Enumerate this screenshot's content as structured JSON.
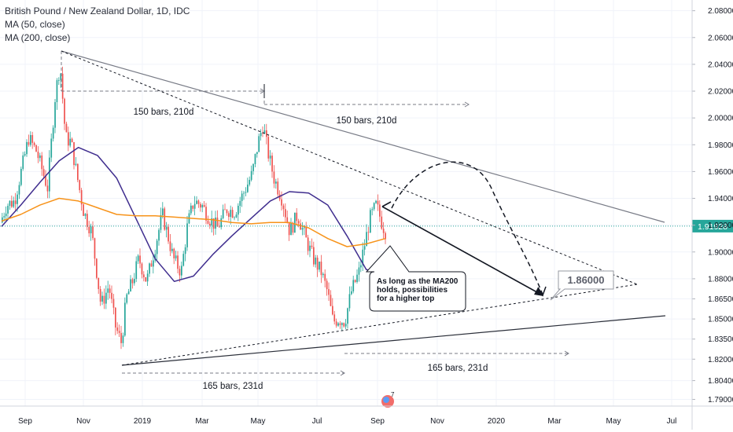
{
  "header": {
    "symbol_title": "British Pound / New Zealand Dollar, 1D, IDC",
    "ma50_label": "MA (50, close)",
    "ma200_label": "MA (200, close)"
  },
  "colors": {
    "up": "#26a69a",
    "down": "#ef5350",
    "ma50": "#3f2d8e",
    "ma200": "#f7931a",
    "price_line": "#26a69a",
    "trendline": "#131722"
  },
  "price_tag": "1.91928",
  "target_label": "1.86000",
  "callout_text": [
    "As long as the MA200",
    "holds, possibilities",
    "for a higher top"
  ],
  "measure_labels": [
    "150 bars, 210d",
    "150 bars, 210d",
    "165 bars, 231d",
    "165 bars, 231d"
  ],
  "chart_data": {
    "type": "candlestick",
    "title": "British Pound / New Zealand Dollar, 1D, IDC",
    "x_ticks": [
      "Sep",
      "Nov",
      "2019",
      "Mar",
      "May",
      "Jul",
      "Sep",
      "Nov",
      "2020",
      "Mar",
      "May",
      "Jul"
    ],
    "y_ticks": [
      "2.08000",
      "2.06000",
      "2.04000",
      "2.02000",
      "2.00000",
      "1.98000",
      "1.96000",
      "1.94000",
      "1.92000",
      "1.90000",
      "1.88000",
      "1.86500",
      "1.85000",
      "1.83500",
      "1.82000",
      "1.80400",
      "1.79000"
    ],
    "ylim": [
      1.785,
      2.088
    ],
    "last_price": 1.91928,
    "series": [
      {
        "name": "MA (50, close)",
        "values": [
          1.919,
          1.935,
          1.952,
          1.968,
          1.978,
          1.972,
          1.955,
          1.925,
          1.895,
          1.878,
          1.882,
          1.898,
          1.912,
          1.925,
          1.938,
          1.945,
          1.944,
          1.935,
          1.912,
          1.887,
          1.882
        ]
      },
      {
        "name": "MA (200, close)",
        "values": [
          1.923,
          1.928,
          1.935,
          1.94,
          1.938,
          1.933,
          1.928,
          1.927,
          1.927,
          1.926,
          1.925,
          1.924,
          1.922,
          1.921,
          1.922,
          1.922,
          1.918,
          1.91,
          1.904,
          1.906,
          1.91
        ]
      }
    ],
    "annotations": [
      "150 bars, 210d",
      "150 bars, 210d",
      "165 bars, 231d",
      "165 bars, 231d",
      "1.86000",
      "As long as the MA200 holds, possibilities for a higher top"
    ]
  }
}
